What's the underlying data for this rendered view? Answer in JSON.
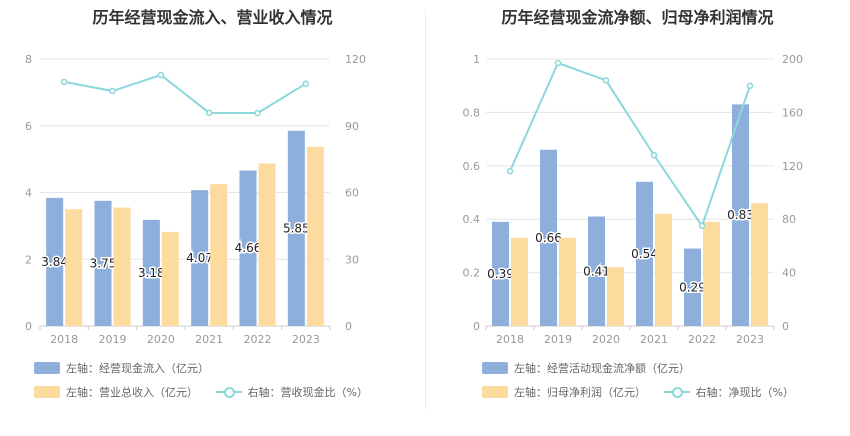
{
  "charts": [
    {
      "title": "历年经营现金流入、营业收入情况",
      "legend": [
        {
          "label": "左轴：经营现金流入（亿元）",
          "color": "#8eaedb",
          "kind": "bar"
        },
        {
          "label": "左轴：营业总收入（亿元）",
          "color": "#fddb9f",
          "kind": "bar"
        },
        {
          "label": "右轴：营收现金比（%）",
          "color": "#8ad8dc",
          "kind": "line"
        }
      ]
    },
    {
      "title": "历年经营现金流净额、归母净利润情况",
      "legend": [
        {
          "label": "左轴：经营活动现金流净额（亿元）",
          "color": "#8eaedb",
          "kind": "bar"
        },
        {
          "label": "左轴：归母净利润（亿元）",
          "color": "#fddb9f",
          "kind": "bar"
        },
        {
          "label": "右轴：净现比（%）",
          "color": "#8ad8dc",
          "kind": "line"
        }
      ]
    }
  ],
  "chart_data": [
    {
      "type": "bar",
      "title": "历年经营现金流入、营业收入情况",
      "categories": [
        "2018",
        "2019",
        "2020",
        "2021",
        "2022",
        "2023"
      ],
      "ylim_left": [
        0,
        8
      ],
      "yticks_left": [
        "0",
        "2",
        "4",
        "6",
        "8"
      ],
      "ylim_right": [
        0,
        120
      ],
      "yticks_right": [
        "0",
        "30",
        "60",
        "90",
        "120"
      ],
      "grid": true,
      "legend_position": "bottom-left",
      "series": [
        {
          "name": "左轴：经营现金流入（亿元）",
          "type": "bar",
          "axis": "left",
          "color": "#8eaedb",
          "values": [
            3.84,
            3.75,
            3.18,
            4.07,
            4.66,
            5.85
          ],
          "labels": [
            "3.84",
            "3.75",
            "3.18",
            "4.07",
            "4.66",
            "5.85"
          ]
        },
        {
          "name": "左轴：营业总收入（亿元）",
          "type": "bar",
          "axis": "left",
          "color": "#fddb9f",
          "values": [
            3.5,
            3.55,
            2.82,
            4.25,
            4.87,
            5.37
          ]
        },
        {
          "name": "右轴：营收现金比（%）",
          "type": "line",
          "axis": "right",
          "color": "#8ad8dc",
          "values": [
            109.7,
            105.6,
            112.8,
            95.8,
            95.7,
            108.9
          ]
        }
      ]
    },
    {
      "type": "bar",
      "title": "历年经营现金流净额、归母净利润情况",
      "categories": [
        "2018",
        "2019",
        "2020",
        "2021",
        "2022",
        "2023"
      ],
      "ylim_left": [
        0,
        1
      ],
      "yticks_left": [
        "0",
        "0.2",
        "0.4",
        "0.6",
        "0.8",
        "1"
      ],
      "ylim_right": [
        0,
        200
      ],
      "yticks_right": [
        "0",
        "40",
        "80",
        "120",
        "160",
        "200"
      ],
      "grid": true,
      "legend_position": "bottom-left",
      "series": [
        {
          "name": "左轴：经营活动现金流净额（亿元）",
          "type": "bar",
          "axis": "left",
          "color": "#8eaedb",
          "values": [
            0.39,
            0.66,
            0.41,
            0.54,
            0.29,
            0.83
          ],
          "labels": [
            "0.39",
            "0.66",
            "0.41",
            "0.54",
            "0.29",
            "0.83"
          ]
        },
        {
          "name": "左轴：归母净利润（亿元）",
          "type": "bar",
          "axis": "left",
          "color": "#fddb9f",
          "values": [
            0.33,
            0.33,
            0.22,
            0.42,
            0.39,
            0.46
          ]
        },
        {
          "name": "右轴：净现比（%）",
          "type": "line",
          "axis": "right",
          "color": "#8ad8dc",
          "values": [
            116,
            197,
            184,
            128,
            75,
            180
          ]
        }
      ]
    }
  ]
}
